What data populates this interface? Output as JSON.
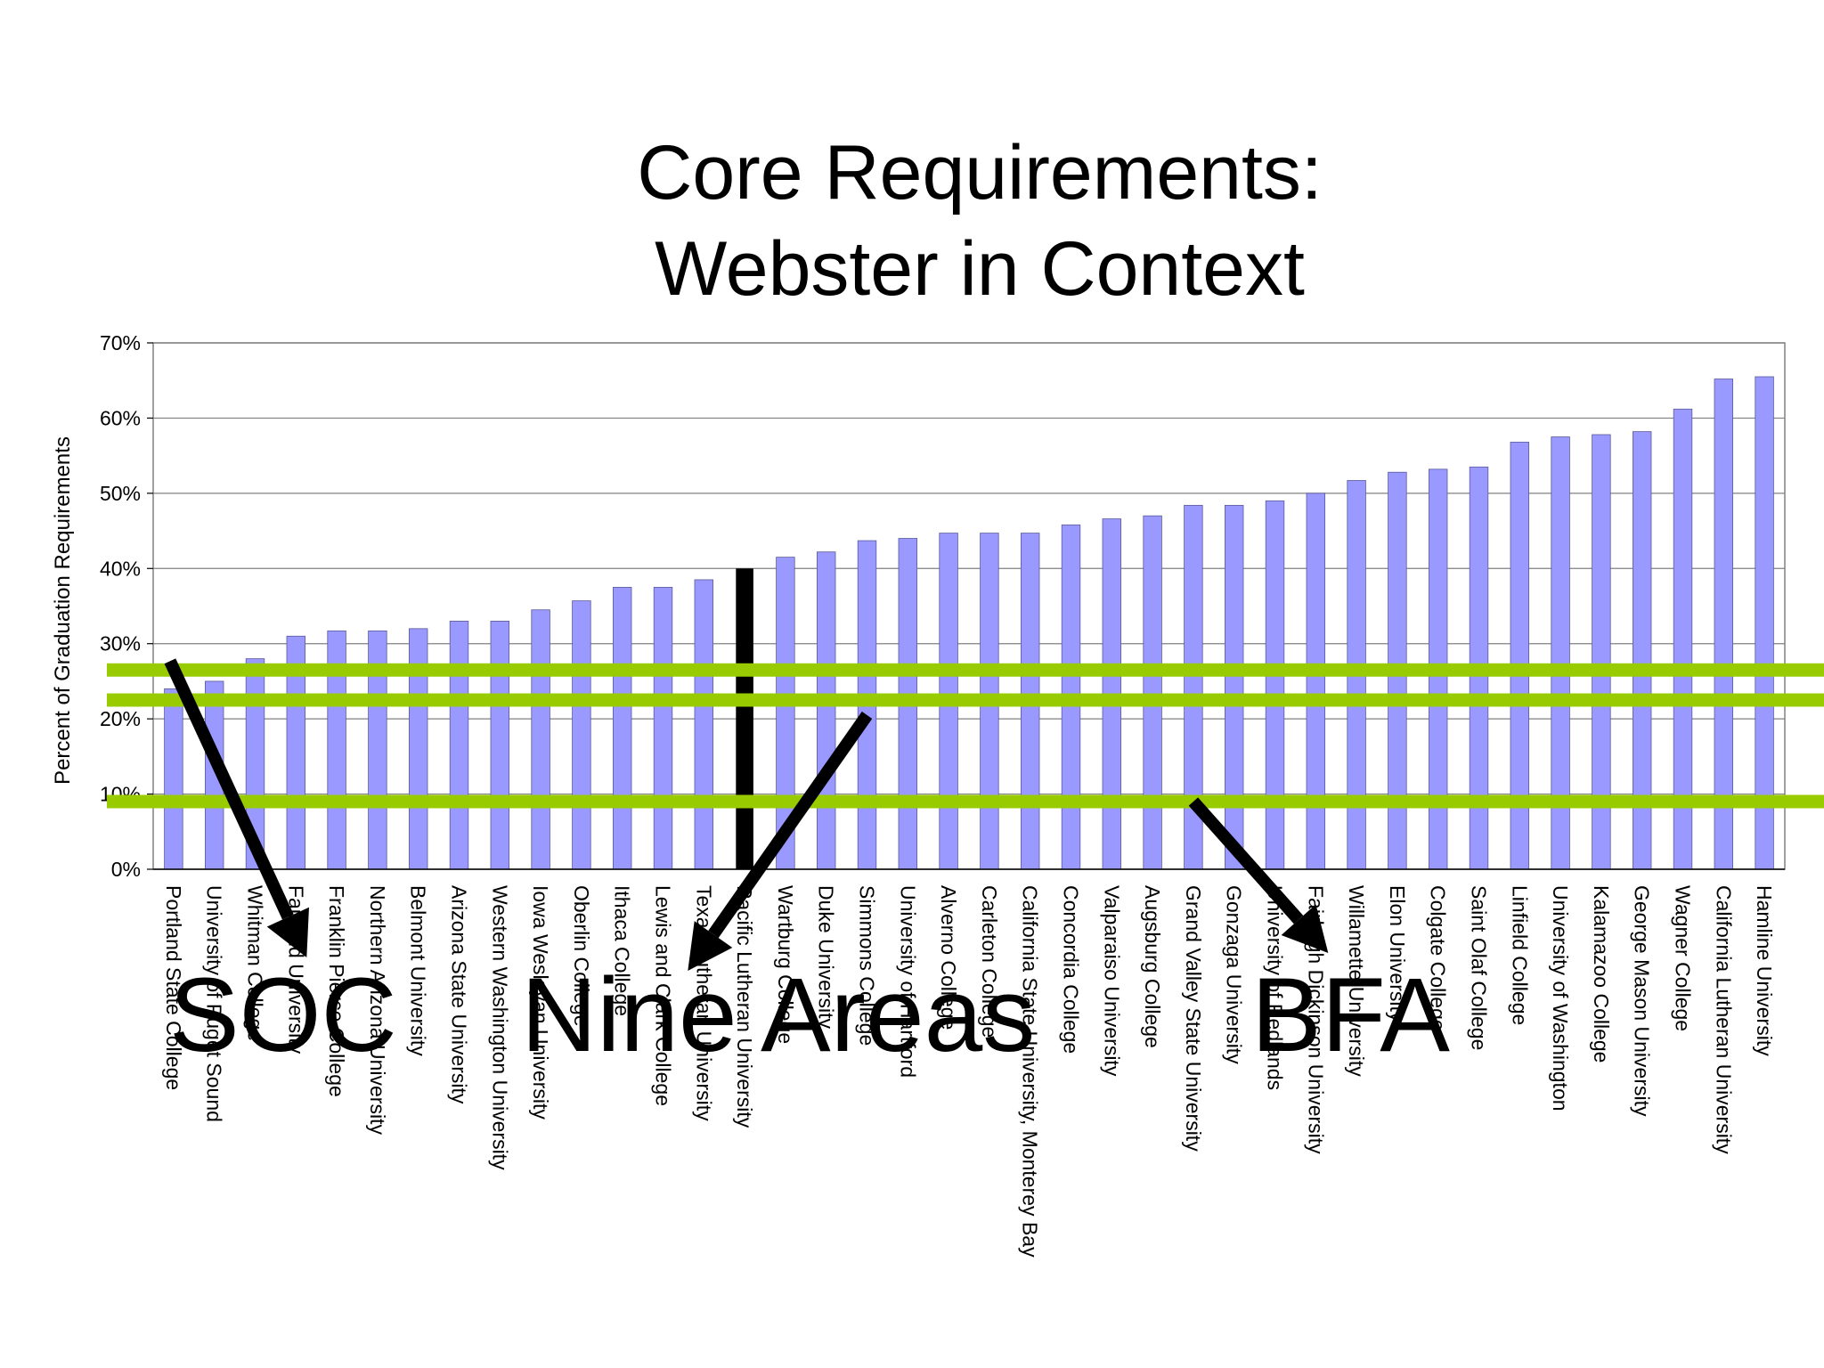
{
  "slide": {
    "title_line1": "Core Requirements:",
    "title_line2": "Webster in Context"
  },
  "chart_data": {
    "type": "bar",
    "ylabel": "Percent of Graduation Requirements",
    "ylim": [
      0,
      0.7
    ],
    "yticks": [
      "0%",
      "10%",
      "20%",
      "30%",
      "40%",
      "50%",
      "60%",
      "70%"
    ],
    "grid": true,
    "bar_color": "#9999ff",
    "categories": [
      "Portland State College",
      "University of Puget Sound",
      "Whitman College",
      "Fairfield University",
      "Franklin Pierce College",
      "Northern Arizona University",
      "Belmont University",
      "Arizona State University",
      "Western Washington University",
      "Iowa Wesleyan University",
      "Oberlin College",
      "Ithaca College",
      "Lewis and Clark College",
      "Texas Lutheran University",
      "Pacific Lutheran University",
      "Wartburg College",
      "Duke University",
      "Simmons College",
      "University of Hartford",
      "Alverno College",
      "Carleton College",
      "California State University, Monterey Bay",
      "Concordia College",
      "Valparaiso University",
      "Augsburg College",
      "Grand Valley State University",
      "Gonzaga University",
      "University of Redlands",
      "Fairleigh Dickinson University",
      "Willamette University",
      "Elon University",
      "Colgate College",
      "Saint Olaf College",
      "Linfield College",
      "University of Washington",
      "Kalamazoo College",
      "George Mason University",
      "Wagner College",
      "California Lutheran University",
      "Hamline University"
    ],
    "values": [
      0.24,
      0.25,
      0.28,
      0.31,
      0.317,
      0.317,
      0.32,
      0.33,
      0.33,
      0.345,
      0.357,
      0.375,
      0.375,
      0.385,
      0.4,
      0.415,
      0.422,
      0.437,
      0.44,
      0.447,
      0.447,
      0.447,
      0.458,
      0.466,
      0.47,
      0.484,
      0.484,
      0.49,
      0.5,
      0.517,
      0.528,
      0.532,
      0.535,
      0.568,
      0.575,
      0.578,
      0.582,
      0.612,
      0.652,
      0.655
    ],
    "highlight_index": 14,
    "highlight_color": "#000000",
    "reference_lines": [
      0.265,
      0.225,
      0.09
    ],
    "reference_line_color": "#99cc00",
    "annotations": [
      {
        "label": "SOC",
        "arrow_from_index": 0,
        "arrow_to_index": 3
      },
      {
        "label": "Nine Areas",
        "arrow_from_index": 17,
        "arrow_to_index": 13
      },
      {
        "label": "BFA",
        "arrow_from_index": 25,
        "arrow_to_index": 28
      }
    ]
  }
}
